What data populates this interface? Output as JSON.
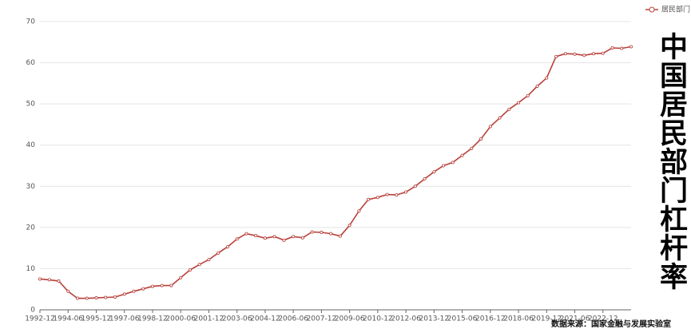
{
  "chart_data": {
    "type": "line",
    "title": "中国居民部门杠杆率",
    "source": "数据来源：国家金融与发展实验室",
    "categories": [
      "1992-12",
      null,
      null,
      "1994-06",
      null,
      null,
      "1995-12",
      null,
      null,
      "1997-06",
      null,
      null,
      "1998-12",
      null,
      null,
      "2000-06",
      null,
      null,
      "2001-12",
      null,
      null,
      "2003-06",
      null,
      null,
      "2004-12",
      null,
      null,
      "2006-06",
      null,
      null,
      "2007-12",
      null,
      null,
      "2009-06",
      null,
      null,
      "2010-12",
      null,
      null,
      "2012-06",
      null,
      null,
      "2013-12",
      null,
      null,
      "2015-06",
      null,
      null,
      "2016-12",
      null,
      null,
      "2018-06",
      null,
      null,
      "2019-12",
      null,
      null,
      "2021-06",
      null,
      null,
      "2022-12",
      null,
      null,
      null
    ],
    "series": [
      {
        "name": "居民部门",
        "color": "#b8403a",
        "values": [
          7.5,
          7.3,
          7.0,
          4.5,
          2.8,
          2.8,
          2.9,
          3.0,
          3.1,
          3.8,
          4.5,
          5.1,
          5.7,
          5.9,
          5.9,
          7.8,
          9.7,
          11.0,
          12.2,
          13.8,
          15.3,
          17.2,
          18.5,
          18.0,
          17.4,
          17.8,
          16.9,
          17.8,
          17.5,
          18.9,
          18.8,
          18.5,
          17.9,
          20.5,
          24.0,
          26.8,
          27.3,
          28.0,
          27.9,
          28.6,
          30.0,
          31.8,
          33.5,
          35.0,
          35.8,
          37.5,
          39.2,
          41.5,
          44.5,
          46.6,
          48.7,
          50.3,
          52.0,
          54.3,
          56.3,
          61.5,
          62.2,
          62.1,
          61.8,
          62.2,
          62.3,
          63.6,
          63.5,
          63.9
        ]
      }
    ],
    "ylim": [
      0,
      70
    ],
    "yticks": [
      0,
      10,
      20,
      30,
      40,
      50,
      60,
      70
    ],
    "grid": true,
    "legend": "top-right"
  }
}
